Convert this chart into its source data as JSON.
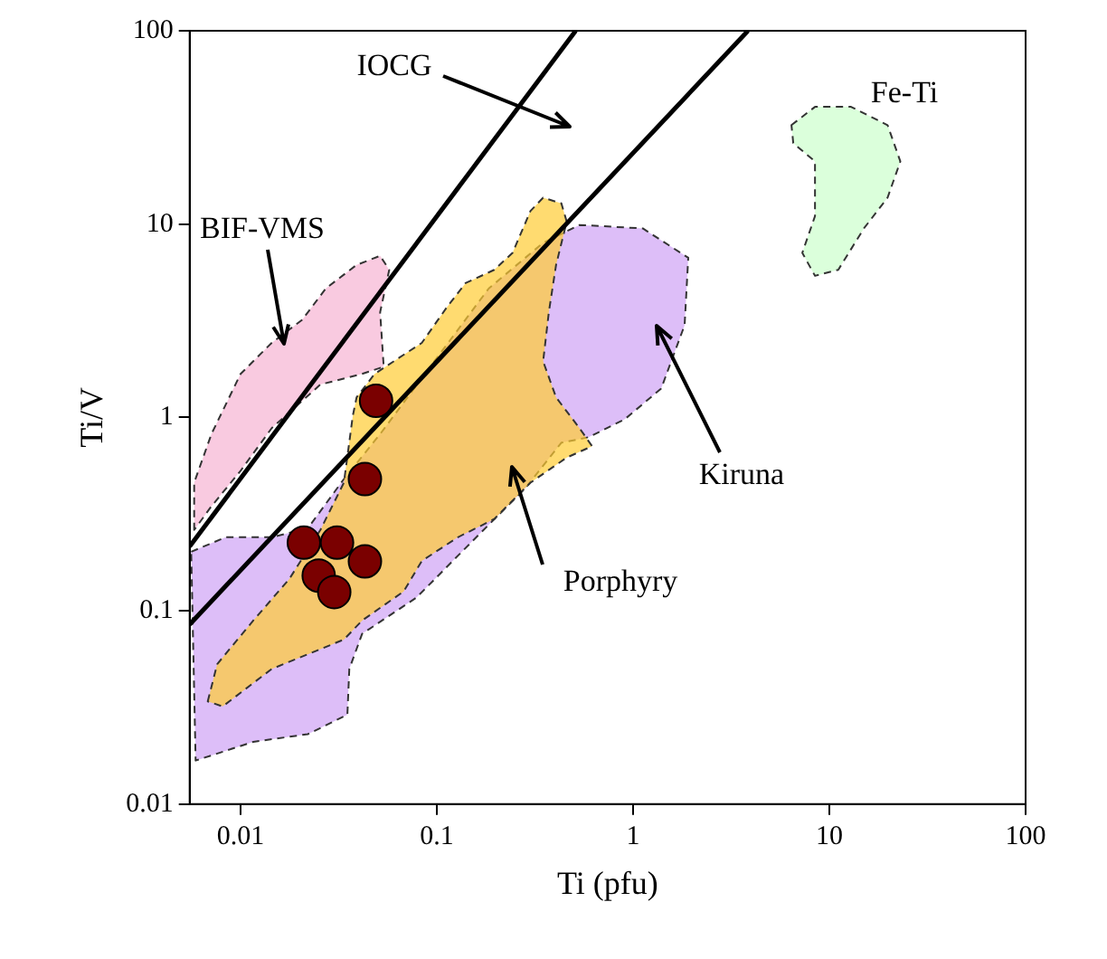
{
  "chart_data": {
    "type": "scatter",
    "xlabel": "Ti (pfu)",
    "ylabel": "Ti/V",
    "log": "xy",
    "grid": false,
    "legend": false,
    "xlim": [
      0.0055,
      100
    ],
    "ylim": [
      0.01,
      100
    ],
    "xticks": [
      0.01,
      0.1,
      1,
      10,
      100
    ],
    "yticks": [
      0.01,
      0.1,
      1,
      10,
      100
    ],
    "series": [
      {
        "type": "area",
        "color": "#cfa3f5",
        "line_style": "dashed",
        "x": [
          0.0056,
          0.0084,
          0.0144,
          0.022,
          0.0336,
          0.0514,
          0.097,
          0.184,
          0.348,
          0.533,
          1.12,
          1.91,
          1.83,
          1.39,
          0.908,
          0.593,
          0.431,
          0.282,
          0.149,
          0.0787,
          0.0416,
          0.0358,
          0.035,
          0.022,
          0.0116,
          0.0059
        ],
        "values": [
          0.202,
          0.24,
          0.24,
          0.267,
          0.48,
          0.82,
          1.95,
          4.65,
          8.0,
          9.9,
          9.5,
          6.7,
          3.0,
          1.41,
          0.98,
          0.79,
          0.74,
          0.43,
          0.225,
          0.117,
          0.076,
          0.05,
          0.029,
          0.023,
          0.021,
          0.0168
        ]
      },
      {
        "type": "area",
        "color": "#ffcc33",
        "line_style": "dashed",
        "x": [
          0.0068,
          0.0076,
          0.0116,
          0.0177,
          0.0255,
          0.0336,
          0.0373,
          0.039,
          0.0482,
          0.0838,
          0.113,
          0.14,
          0.196,
          0.243,
          0.3,
          0.348,
          0.431,
          0.459,
          0.405,
          0.372,
          0.348,
          0.405,
          0.533,
          0.618,
          0.459,
          0.3,
          0.196,
          0.128,
          0.0838,
          0.0678,
          0.0416,
          0.0336,
          0.0144,
          0.0081
        ],
        "values": [
          0.034,
          0.053,
          0.089,
          0.146,
          0.262,
          0.46,
          1.02,
          1.27,
          1.68,
          2.43,
          3.74,
          4.95,
          5.8,
          7.1,
          11.7,
          13.7,
          12.8,
          10.3,
          6.15,
          3.5,
          1.95,
          1.27,
          0.88,
          0.71,
          0.62,
          0.46,
          0.298,
          0.24,
          0.181,
          0.126,
          0.089,
          0.071,
          0.05,
          0.032
        ]
      },
      {
        "type": "area",
        "color": "#f7b3d3",
        "line_style": "dashed",
        "x": [
          0.0058,
          0.0058,
          0.0071,
          0.01,
          0.0144,
          0.0206,
          0.0272,
          0.039,
          0.0514,
          0.0572,
          0.0514,
          0.0536,
          0.0416,
          0.0255,
          0.0144,
          0.01,
          0.0071
        ],
        "values": [
          0.262,
          0.46,
          0.82,
          1.68,
          2.43,
          3.2,
          4.65,
          6.15,
          6.85,
          5.8,
          3.5,
          1.83,
          1.68,
          1.48,
          0.88,
          0.53,
          0.347
        ]
      },
      {
        "type": "area",
        "color": "#ccffcc",
        "line_style": "dashed",
        "x": [
          6.41,
          8.45,
          12.9,
          19.8,
          23.0,
          19.8,
          15.0,
          11.1,
          8.45,
          7.28,
          8.45,
          8.45,
          6.55
        ],
        "values": [
          32.5,
          40.4,
          40.4,
          32.5,
          21.1,
          13.7,
          9.5,
          5.8,
          5.4,
          7.1,
          11.0,
          21.1,
          26.2
        ]
      },
      {
        "type": "line",
        "color": "#000000",
        "line_style": "solid",
        "marker": "none",
        "x": [
          0.0055,
          0.51
        ],
        "values": [
          0.215,
          100
        ]
      },
      {
        "type": "line",
        "color": "#000000",
        "line_style": "solid",
        "marker": "none",
        "x": [
          0.0055,
          3.85
        ],
        "values": [
          0.085,
          100
        ]
      },
      {
        "type": "scatter",
        "color": "#7a0000",
        "marker": "circle",
        "x": [
          0.049,
          0.043,
          0.021,
          0.031,
          0.025,
          0.03,
          0.043
        ],
        "values": [
          1.22,
          0.48,
          0.225,
          0.225,
          0.152,
          0.125,
          0.18
        ]
      }
    ],
    "annotations": [
      "IOCG",
      "BIF-VMS",
      "Kiruna",
      "Porphyry",
      "Fe-Ti"
    ]
  }
}
